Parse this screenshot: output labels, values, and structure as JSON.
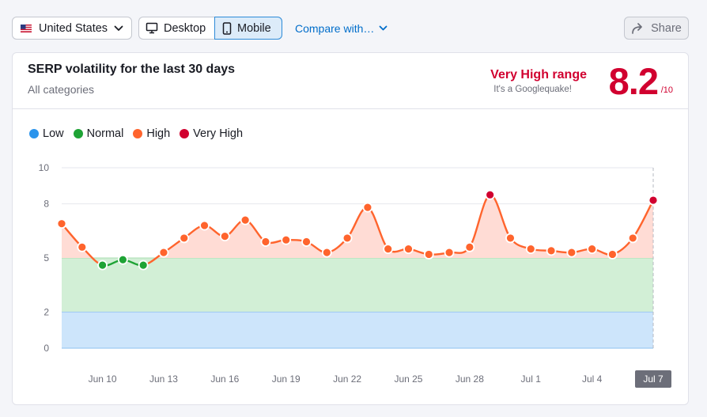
{
  "toolbar": {
    "country": "United States",
    "device_desktop": "Desktop",
    "device_mobile": "Mobile",
    "compare": "Compare with…",
    "share": "Share"
  },
  "card": {
    "title": "SERP volatility for the last 30 days",
    "subtitle": "All categories",
    "range_label": "Very High range",
    "range_note": "It's a Googlequake!",
    "score": "8.2",
    "score_max": "/10"
  },
  "colors": {
    "low": "#2b94ec",
    "normal": "#1ea335",
    "high": "#ff642d",
    "very_high": "#d1002f",
    "band_low": "#cde5fb",
    "band_normal": "#d2efd6",
    "band_high": "#ffdcd5"
  },
  "chart_data": {
    "type": "line",
    "legend": [
      {
        "name": "Low",
        "color": "#2b94ec"
      },
      {
        "name": "Normal",
        "color": "#1ea335"
      },
      {
        "name": "High",
        "color": "#ff642d"
      },
      {
        "name": "Very High",
        "color": "#d1002f"
      }
    ],
    "legend_position": "top-left",
    "ylim": [
      0,
      10
    ],
    "y_ticks": [
      0,
      2,
      5,
      8,
      10
    ],
    "bands": [
      {
        "name": "Low",
        "from": 0,
        "to": 2
      },
      {
        "name": "Normal",
        "from": 2,
        "to": 5
      },
      {
        "name": "High",
        "from": 5,
        "to": 8
      }
    ],
    "x_ticks": [
      {
        "index": 2,
        "label": "Jun 10"
      },
      {
        "index": 5,
        "label": "Jun 13"
      },
      {
        "index": 8,
        "label": "Jun 16"
      },
      {
        "index": 11,
        "label": "Jun 19"
      },
      {
        "index": 14,
        "label": "Jun 22"
      },
      {
        "index": 17,
        "label": "Jun 25"
      },
      {
        "index": 20,
        "label": "Jun 28"
      },
      {
        "index": 23,
        "label": "Jul 1"
      },
      {
        "index": 26,
        "label": "Jul 4"
      },
      {
        "index": 29,
        "label": "Jul 7",
        "highlight": true
      }
    ],
    "series": [
      {
        "values": [
          6.9,
          5.6,
          4.6,
          4.9,
          4.6,
          5.3,
          6.1,
          6.8,
          6.2,
          7.1,
          5.9,
          6.0,
          5.9,
          5.3,
          6.1,
          7.8,
          5.5,
          5.5,
          5.2,
          5.3,
          5.6,
          8.5,
          6.1,
          5.5,
          5.4,
          5.3,
          5.5,
          5.2,
          6.1,
          8.2
        ],
        "levels": [
          "High",
          "High",
          "Normal",
          "Normal",
          "Normal",
          "High",
          "High",
          "High",
          "High",
          "High",
          "High",
          "High",
          "High",
          "High",
          "High",
          "High",
          "High",
          "High",
          "High",
          "High",
          "High",
          "Very High",
          "High",
          "High",
          "High",
          "High",
          "High",
          "High",
          "High",
          "Very High"
        ]
      }
    ]
  }
}
